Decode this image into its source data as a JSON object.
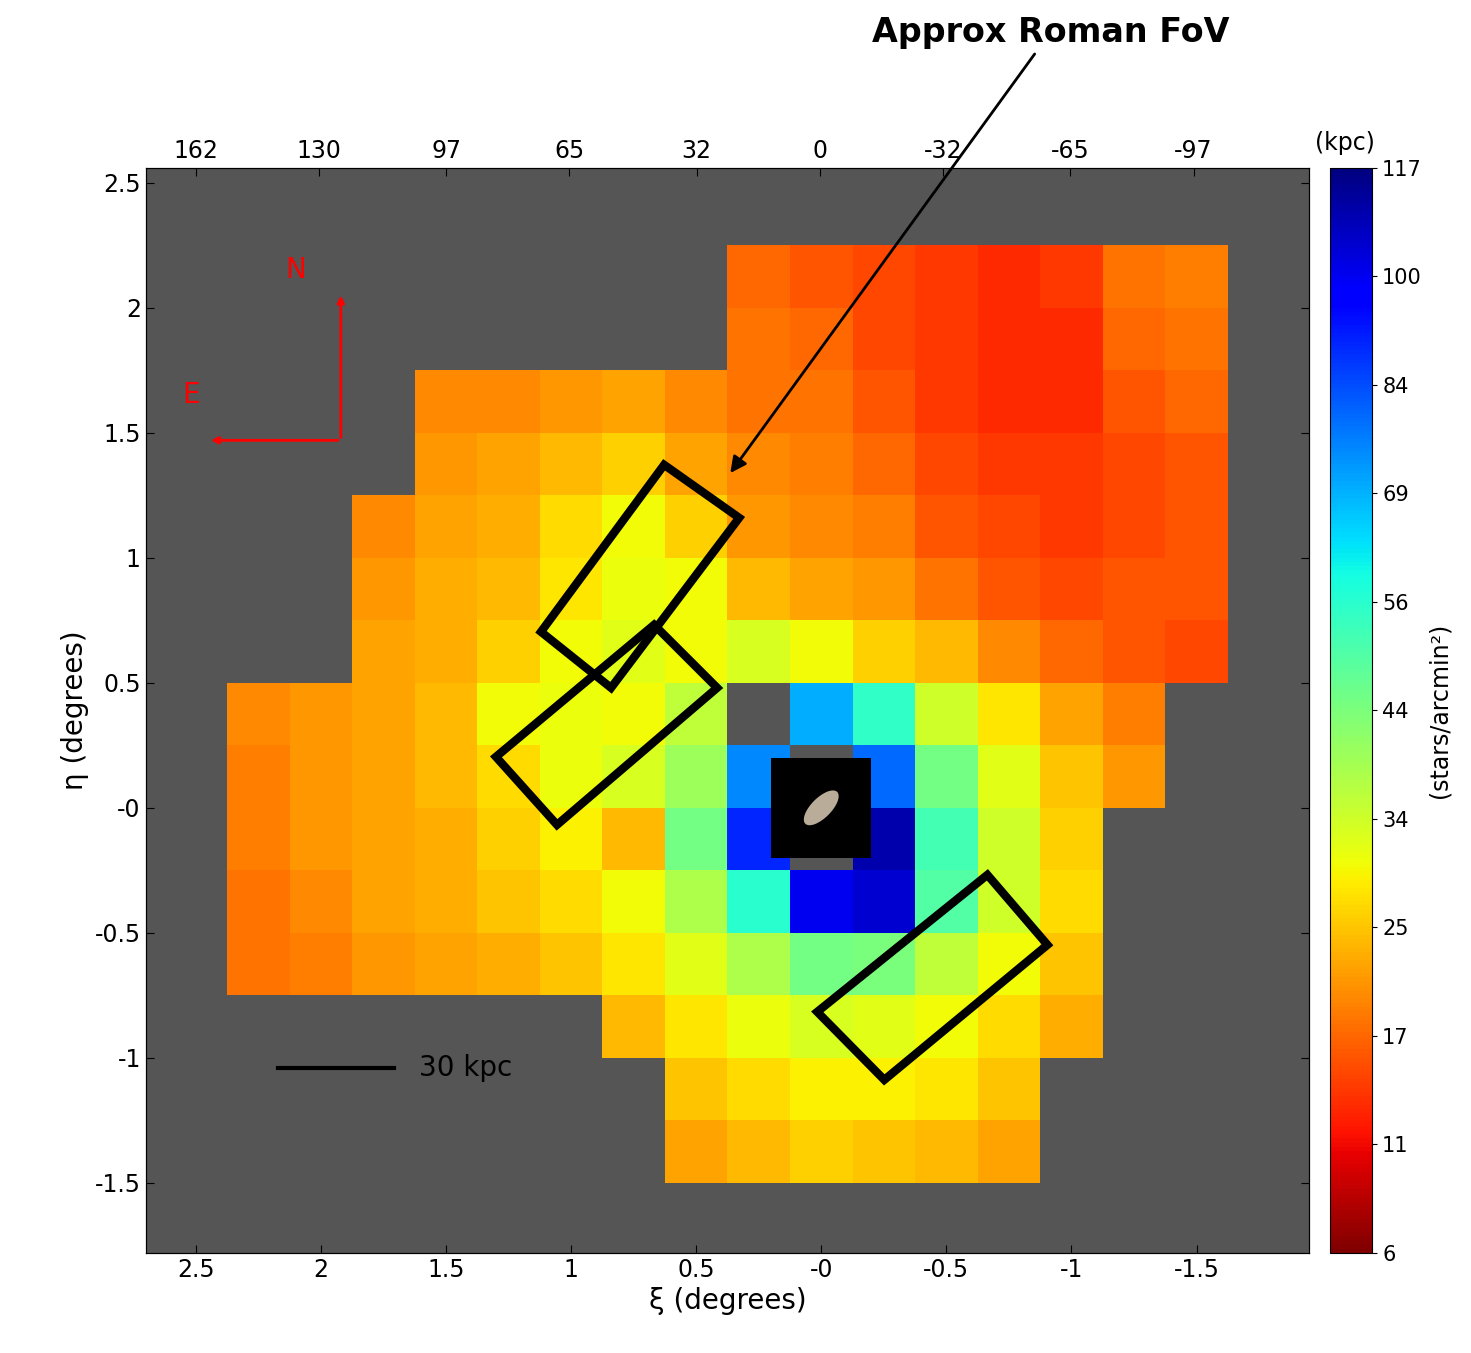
{
  "chart_data": {
    "type": "heatmap",
    "annotation": "Approx Roman FoV",
    "compass": [
      "N",
      "E"
    ],
    "x_label": "ξ (degrees)",
    "y_label": "η (degrees)",
    "x2_label": "(kpc)",
    "x": [
      2.5,
      2.25,
      2.0,
      1.75,
      1.5,
      1.25,
      1.0,
      0.75,
      0.5,
      0.25,
      0.0,
      -0.25,
      -0.5,
      -0.75,
      -1.0,
      -1.25,
      -1.5,
      -1.75
    ],
    "y": [
      2.375,
      2.125,
      1.875,
      1.625,
      1.375,
      1.125,
      0.875,
      0.625,
      0.375,
      0.125,
      -0.125,
      -0.375,
      -0.625,
      -0.875,
      -1.125,
      -1.375,
      -1.625
    ],
    "cells": [
      [
        null,
        null,
        null,
        null,
        null,
        null,
        null,
        null,
        null,
        null,
        null,
        null,
        null,
        null,
        null,
        null,
        null,
        null
      ],
      [
        null,
        null,
        null,
        null,
        null,
        null,
        null,
        null,
        null,
        17,
        16,
        15,
        14,
        13,
        14,
        18,
        19,
        null
      ],
      [
        null,
        null,
        null,
        null,
        null,
        null,
        null,
        null,
        null,
        18,
        17,
        15,
        14,
        13,
        13,
        17,
        18,
        null
      ],
      [
        null,
        null,
        null,
        null,
        20,
        20,
        21,
        22,
        20,
        18,
        18,
        16,
        14,
        13,
        13,
        16,
        17,
        null
      ],
      [
        null,
        null,
        null,
        null,
        21,
        22,
        24,
        26,
        22,
        20,
        19,
        17,
        15,
        14,
        14,
        15,
        16,
        null
      ],
      [
        null,
        null,
        null,
        20,
        22,
        23,
        27,
        30,
        26,
        21,
        20,
        19,
        16,
        15,
        14,
        15,
        16,
        null
      ],
      [
        null,
        null,
        null,
        21,
        23,
        24,
        28,
        31,
        30,
        24,
        22,
        21,
        18,
        16,
        15,
        16,
        16,
        null
      ],
      [
        null,
        null,
        null,
        22,
        23,
        26,
        30,
        32,
        30,
        33,
        30,
        26,
        24,
        20,
        17,
        16,
        15,
        null
      ],
      [
        null,
        20,
        21,
        22,
        24,
        30,
        31,
        30,
        36,
        null,
        70,
        55,
        34,
        28,
        22,
        19,
        null,
        null
      ],
      [
        null,
        19,
        21,
        22,
        24,
        27,
        31,
        33,
        40,
        75,
        null,
        80,
        45,
        32,
        25,
        21,
        null,
        null
      ],
      [
        null,
        19,
        21,
        22,
        23,
        26,
        29,
        24,
        45,
        90,
        null,
        110,
        52,
        34,
        26,
        null,
        null,
        null
      ],
      [
        null,
        18,
        20,
        22,
        23,
        25,
        27,
        30,
        38,
        56,
        100,
        105,
        50,
        34,
        27,
        null,
        null,
        null
      ],
      [
        null,
        18,
        19,
        21,
        22,
        23,
        25,
        28,
        32,
        38,
        45,
        44,
        36,
        30,
        25,
        null,
        null,
        null
      ],
      [
        null,
        null,
        null,
        null,
        null,
        null,
        null,
        24,
        28,
        31,
        33,
        32,
        30,
        27,
        23,
        null,
        null,
        null
      ],
      [
        null,
        null,
        null,
        null,
        null,
        null,
        null,
        null,
        25,
        27,
        29,
        29,
        28,
        25,
        null,
        null,
        null,
        null
      ],
      [
        null,
        null,
        null,
        null,
        null,
        null,
        null,
        null,
        22,
        24,
        26,
        25,
        24,
        22,
        null,
        null,
        null,
        null
      ],
      [
        null,
        null,
        null,
        null,
        null,
        null,
        null,
        null,
        null,
        null,
        null,
        null,
        null,
        null,
        null,
        null,
        null,
        null
      ]
    ],
    "xlim": [
      2.7,
      -1.95
    ],
    "ylim": [
      -1.78,
      2.56
    ],
    "xticks": [
      2.5,
      2,
      1.5,
      1,
      0.5,
      {
        "value": 0,
        "label": "-0"
      },
      -0.5,
      -1,
      -1.5
    ],
    "yticks": [
      2.5,
      2,
      1.5,
      1,
      0.5,
      {
        "value": 0,
        "label": "-0"
      },
      -0.5,
      -1,
      -1.5
    ],
    "x2lim": [
      175,
      -127
    ],
    "x2ticks": [
      162,
      130,
      97,
      65,
      32,
      0,
      -32,
      -65,
      -97
    ],
    "colorbar": {
      "label": "(stars/arcmin²)",
      "lim": [
        6,
        117
      ],
      "ticks": [
        117,
        100,
        84,
        69,
        56,
        44,
        34,
        25,
        17,
        11,
        6
      ]
    },
    "scale_bar": {
      "value": 30,
      "label": "30 kpc"
    }
  }
}
